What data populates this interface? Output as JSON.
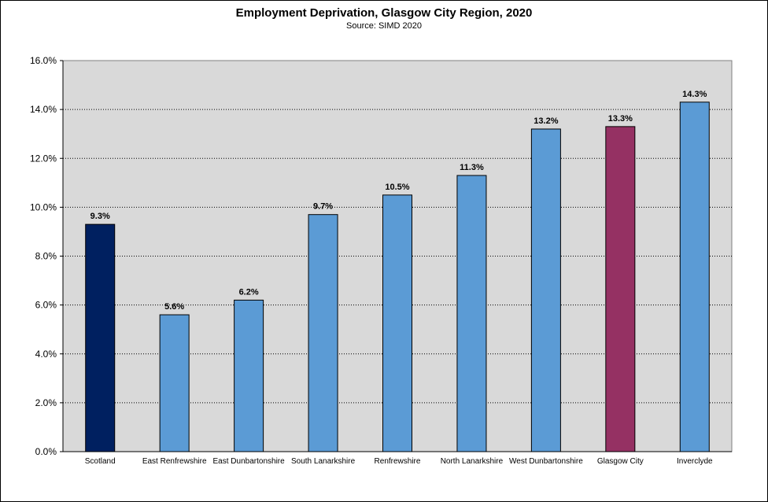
{
  "chart_data": {
    "type": "bar",
    "title": "Employment Deprivation, Glasgow City Region, 2020",
    "subtitle": "Source: SIMD 2020",
    "xlabel": "",
    "ylabel": "",
    "ylim": [
      0,
      16
    ],
    "yticks": [
      "0.0%",
      "2.0%",
      "4.0%",
      "6.0%",
      "8.0%",
      "10.0%",
      "12.0%",
      "14.0%",
      "16.0%"
    ],
    "grid": true,
    "categories": [
      "Scotland",
      "East Renfrewshire",
      "East Dunbartonshire",
      "South Lanarkshire",
      "Renfrewshire",
      "North Lanarkshire",
      "West Dunbartonshire",
      "Glasgow City",
      "Inverclyde"
    ],
    "values": [
      9.3,
      5.6,
      6.2,
      9.7,
      10.5,
      11.3,
      13.2,
      13.3,
      14.3
    ],
    "data_labels": [
      "9.3%",
      "5.6%",
      "6.2%",
      "9.7%",
      "10.5%",
      "11.3%",
      "13.2%",
      "13.3%",
      "14.3%"
    ],
    "bar_colors": [
      "#002060",
      "#5b9bd5",
      "#5b9bd5",
      "#5b9bd5",
      "#5b9bd5",
      "#5b9bd5",
      "#5b9bd5",
      "#953163",
      "#5b9bd5"
    ],
    "plot_background": "#d9d9d9"
  }
}
